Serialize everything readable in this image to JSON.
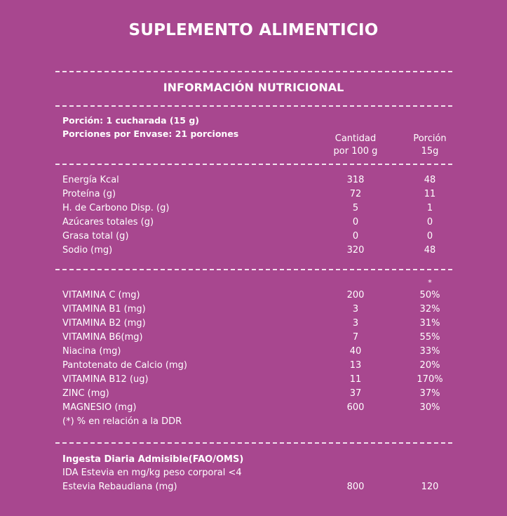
{
  "title": "SUPLEMENTO ALIMENTICIO",
  "subtitle": "INFORMACIÓN NUTRICIONAL",
  "portion": {
    "line1": "Porción: 1 cucharada (15 g)",
    "line2": "Porciones por Envase: 21 porciones"
  },
  "columns": {
    "col1_line1": "Cantidad",
    "col1_line2": "por 100 g",
    "col2_line1": "Porción",
    "col2_line2": "15g"
  },
  "nutrients": [
    {
      "name": "Energía Kcal",
      "per100": "318",
      "portion": "48"
    },
    {
      "name": "Proteína (g)",
      "per100": "72",
      "portion": "11"
    },
    {
      "name": "H. de Carbono Disp. (g)",
      "per100": "5",
      "portion": "1"
    },
    {
      "name": "Azúcares totales (g)",
      "per100": "0",
      "portion": "0"
    },
    {
      "name": "Grasa total (g)",
      "per100": "0",
      "portion": "0"
    },
    {
      "name": "Sodio (mg)",
      "per100": "320",
      "portion": "48"
    }
  ],
  "ddr_marker": "*",
  "vitamins": [
    {
      "name": "VITAMINA C (mg)",
      "per100": "200",
      "portion": "50%"
    },
    {
      "name": "VITAMINA B1 (mg)",
      "per100": "3",
      "portion": "32%"
    },
    {
      "name": "VITAMINA B2 (mg)",
      "per100": "3",
      "portion": "31%"
    },
    {
      "name": "VITAMINA B6(mg)",
      "per100": "7",
      "portion": "55%"
    },
    {
      "name": "Niacina (mg)",
      "per100": "40",
      "portion": "33%"
    },
    {
      "name": "Pantotenato de Calcio (mg)",
      "per100": "13",
      "portion": "20%"
    },
    {
      "name": "VITAMINA B12 (ug)",
      "per100": "11",
      "portion": "170%"
    },
    {
      "name": "ZINC (mg)",
      "per100": "37",
      "portion": "37%"
    },
    {
      "name": "MAGNESIO (mg)",
      "per100": "600",
      "portion": "30%"
    }
  ],
  "ddr_note": "(*) % en relación a la DDR",
  "ida": {
    "heading": "Ingesta Diaria Admisible(FAO/OMS)",
    "line": "IDA Estevia en mg/kg peso corporal <4",
    "row": {
      "name": "Estevia Rebaudiana (mg)",
      "per100": "800",
      "portion": "120"
    }
  }
}
